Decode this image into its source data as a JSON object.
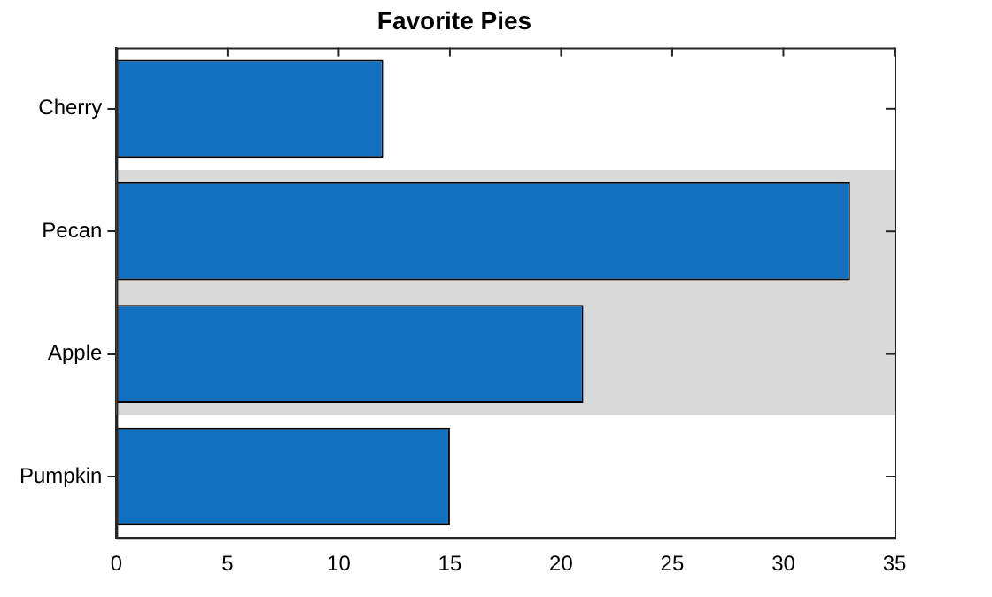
{
  "chart_data": {
    "type": "bar",
    "title": "Favorite Pies",
    "orientation": "horizontal",
    "categories": [
      "Cherry",
      "Pecan",
      "Apple",
      "Pumpkin"
    ],
    "values": [
      12,
      33,
      21,
      15
    ],
    "color": "#1170c0",
    "xlim": [
      0,
      35
    ],
    "xticks": [
      0,
      5,
      10,
      15,
      20,
      25,
      30,
      35
    ],
    "grid": false,
    "bands": [
      {
        "axis": "y",
        "from": "Pecan",
        "to": "Apple",
        "color": "#d9d9d9"
      }
    ]
  }
}
